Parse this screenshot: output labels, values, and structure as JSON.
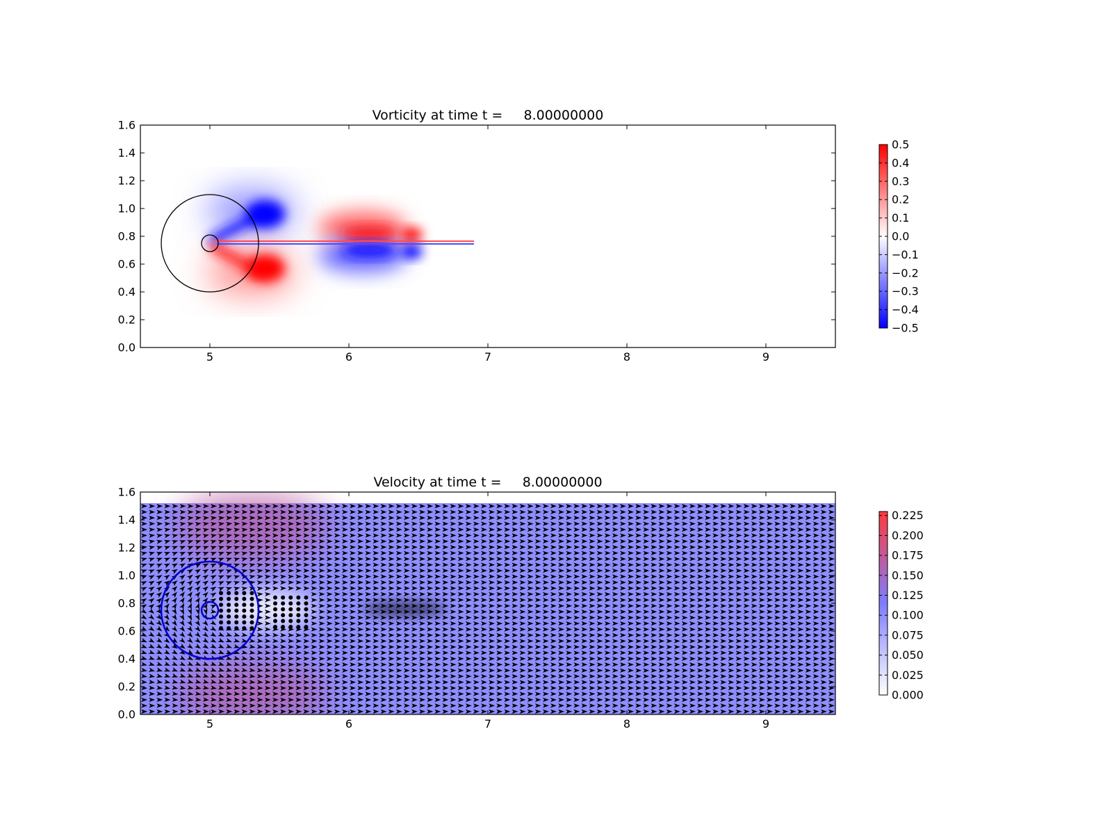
{
  "figure_background": "#ffffff",
  "chart_data": [
    {
      "type": "heatmap",
      "title": "Vorticity at time t =     8.00000000",
      "xlim": [
        4.5,
        9.5
      ],
      "ylim": [
        0.0,
        1.6
      ],
      "xticks": [
        5,
        6,
        7,
        8,
        9
      ],
      "xtick_labels": [
        "5",
        "6",
        "7",
        "8",
        "9"
      ],
      "yticks": [
        0.0,
        0.2,
        0.4,
        0.6,
        0.8,
        1.0,
        1.2,
        1.4,
        1.6
      ],
      "ytick_labels": [
        "0.0",
        "0.2",
        "0.4",
        "0.6",
        "0.8",
        "1.0",
        "1.2",
        "1.4",
        "1.6"
      ],
      "grid": false,
      "colormap": "bwr",
      "colorbar": {
        "vmin": -0.5,
        "vmax": 0.5,
        "colors": [
          "#0000ff",
          "#ffffff",
          "#ff0000"
        ],
        "ticks": [
          0.5,
          0.4,
          0.3,
          0.2,
          0.1,
          0.0,
          -0.1,
          -0.2,
          -0.3,
          -0.4,
          -0.5
        ],
        "tick_labels": [
          "0.5",
          "0.4",
          "0.3",
          "0.2",
          "0.1",
          "0.0",
          "−0.1",
          "−0.2",
          "−0.3",
          "−0.4",
          "−0.5"
        ]
      },
      "vortex_blobs": [
        {
          "x": 5.4,
          "y": 0.96,
          "value": -0.5
        },
        {
          "x": 5.4,
          "y": 0.57,
          "value": 0.5
        },
        {
          "x": 6.15,
          "y": 0.82,
          "value": 0.45
        },
        {
          "x": 6.15,
          "y": 0.7,
          "value": -0.45
        },
        {
          "x": 6.45,
          "y": 0.81,
          "value": 0.5
        },
        {
          "x": 6.45,
          "y": 0.69,
          "value": -0.5
        }
      ],
      "circles": [
        {
          "x": 5.0,
          "y": 0.75,
          "r": 0.35,
          "color": "#000000"
        },
        {
          "x": 5.0,
          "y": 0.75,
          "r": 0.06,
          "color": "#000000"
        }
      ]
    },
    {
      "type": "quiver",
      "title": "Velocity at time t =     8.00000000",
      "xlim": [
        4.5,
        9.5
      ],
      "ylim": [
        0.0,
        1.6
      ],
      "field_ylim": [
        0.0,
        1.52
      ],
      "xticks": [
        5,
        6,
        7,
        8,
        9
      ],
      "xtick_labels": [
        "5",
        "6",
        "7",
        "8",
        "9"
      ],
      "yticks": [
        0.0,
        0.2,
        0.4,
        0.6,
        0.8,
        1.0,
        1.2,
        1.4,
        1.6
      ],
      "ytick_labels": [
        "0.0",
        "0.2",
        "0.4",
        "0.6",
        "0.8",
        "1.0",
        "1.2",
        "1.4",
        "1.6"
      ],
      "grid": false,
      "colormap": "white-blue-red",
      "background_value": 0.1,
      "arrow_color": "#000000",
      "colorbar": {
        "vmin": 0.0,
        "vmax": 0.23,
        "colors": [
          "#ffffff",
          "#7d7dff",
          "#ff3b3b"
        ],
        "ticks": [
          0.225,
          0.2,
          0.175,
          0.15,
          0.125,
          0.1,
          0.075,
          0.05,
          0.025,
          0.0
        ],
        "tick_labels": [
          "0.225",
          "0.200",
          "0.175",
          "0.150",
          "0.125",
          "0.100",
          "0.075",
          "0.050",
          "0.025",
          "0.000"
        ]
      },
      "circles": [
        {
          "x": 5.0,
          "y": 0.75,
          "r": 0.35,
          "color": "#0000cc"
        },
        {
          "x": 5.0,
          "y": 0.75,
          "r": 0.06,
          "color": "#0000cc"
        }
      ],
      "stagnation_dots": [
        {
          "x0": 5.08,
          "x1": 5.33,
          "y0": 0.62,
          "y1": 0.9
        },
        {
          "x0": 5.47,
          "x1": 5.74,
          "y0": 0.63,
          "y1": 0.88
        }
      ]
    }
  ]
}
